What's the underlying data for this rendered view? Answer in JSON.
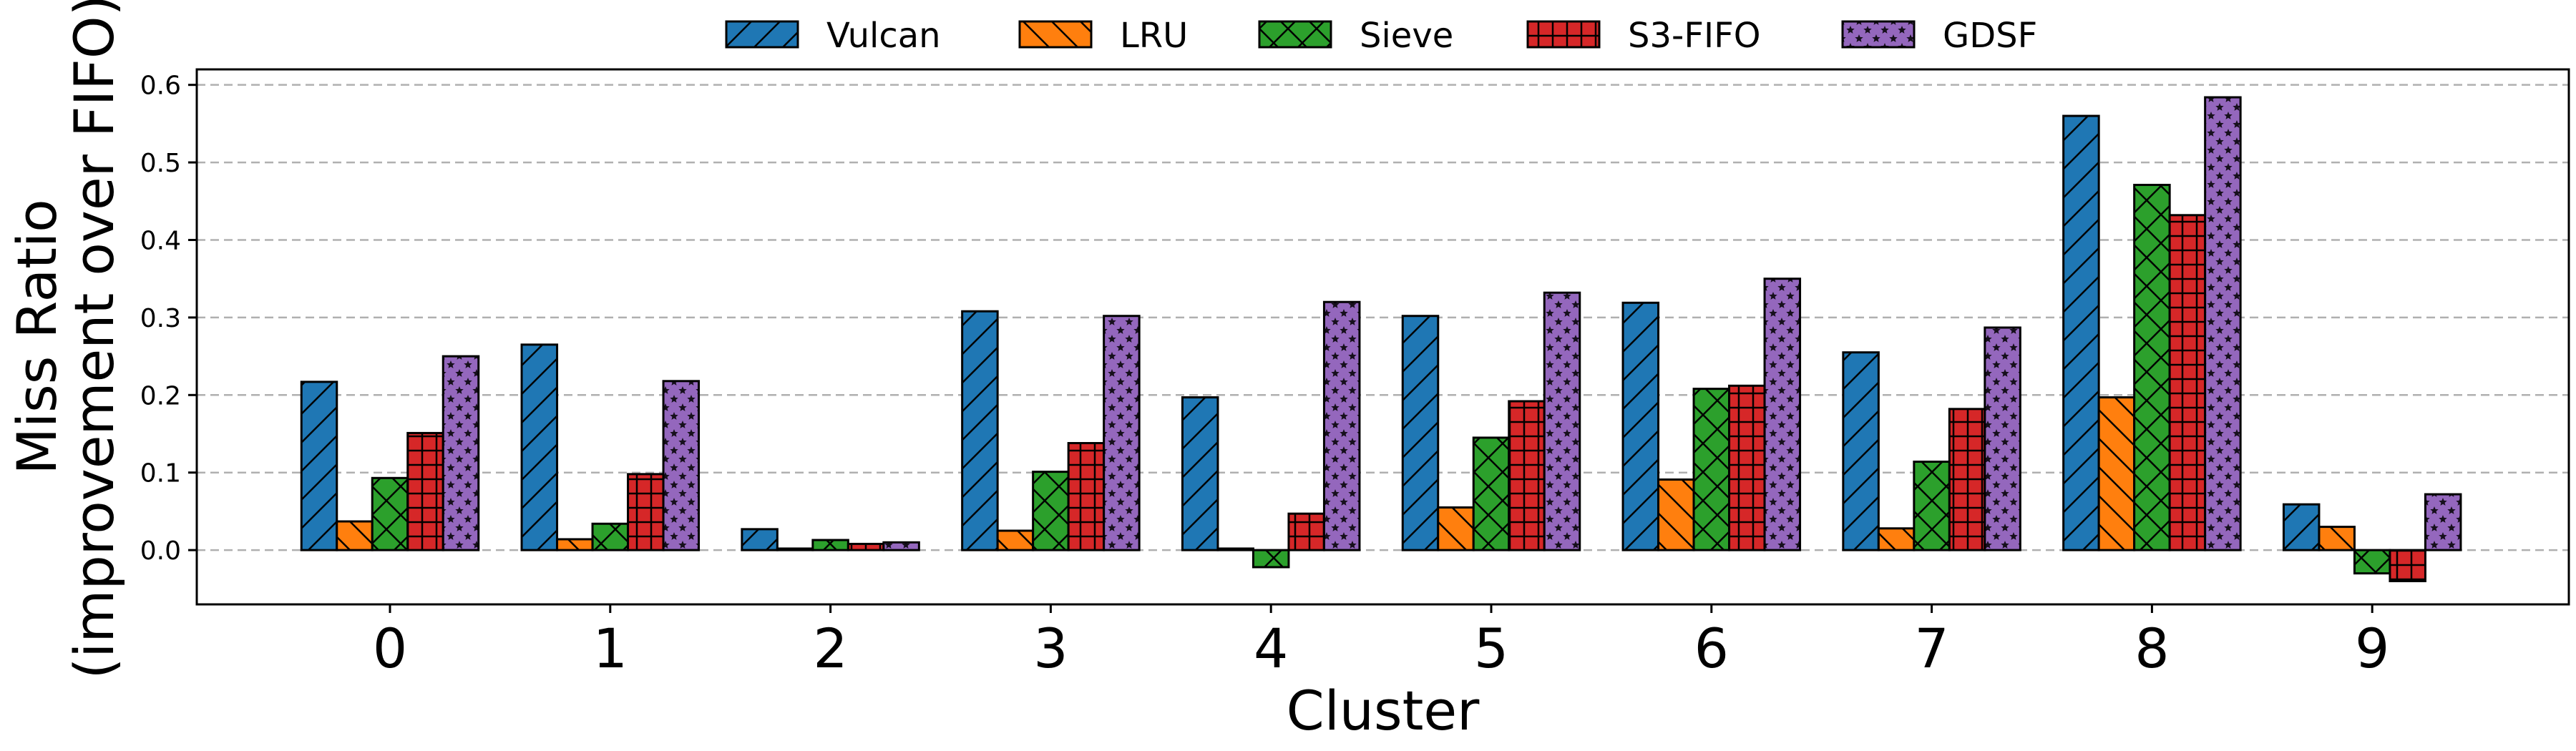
{
  "chart_data": {
    "type": "bar",
    "xlabel": "Cluster",
    "ylabel_line1": "Miss Ratio",
    "ylabel_line2": "(improvement over FIFO)",
    "categories": [
      "0",
      "1",
      "2",
      "3",
      "4",
      "5",
      "6",
      "7",
      "8",
      "9"
    ],
    "ylim": [
      -0.07,
      0.62
    ],
    "yticks": [
      0.0,
      0.1,
      0.2,
      0.3,
      0.4,
      0.5,
      0.6
    ],
    "ytick_labels": [
      "0.0",
      "0.1",
      "0.2",
      "0.3",
      "0.4",
      "0.5",
      "0.6"
    ],
    "grid": "horizontal dashed",
    "legend_position": "top-center, above plot",
    "series": [
      {
        "name": "Vulcan",
        "color": "#1f77b4",
        "hatch": "diagonal",
        "values": [
          0.217,
          0.265,
          0.027,
          0.308,
          0.197,
          0.302,
          0.319,
          0.255,
          0.56,
          0.059
        ]
      },
      {
        "name": "LRU",
        "color": "#ff7f0e",
        "hatch": "back-diagonal",
        "values": [
          0.037,
          0.014,
          0.002,
          0.025,
          0.002,
          0.055,
          0.091,
          0.028,
          0.197,
          0.03
        ]
      },
      {
        "name": "Sieve",
        "color": "#2ca02c",
        "hatch": "crosshatch",
        "values": [
          0.093,
          0.034,
          0.013,
          0.101,
          -0.022,
          0.145,
          0.208,
          0.114,
          0.471,
          -0.03
        ]
      },
      {
        "name": "S3-FIFO",
        "color": "#d62728",
        "hatch": "grid",
        "values": [
          0.151,
          0.098,
          0.008,
          0.138,
          0.047,
          0.192,
          0.212,
          0.182,
          0.432,
          -0.04
        ]
      },
      {
        "name": "GDSF",
        "color": "#9467bd",
        "hatch": "stars",
        "values": [
          0.25,
          0.218,
          0.01,
          0.302,
          0.32,
          0.332,
          0.35,
          0.287,
          0.584,
          0.072
        ]
      }
    ]
  }
}
